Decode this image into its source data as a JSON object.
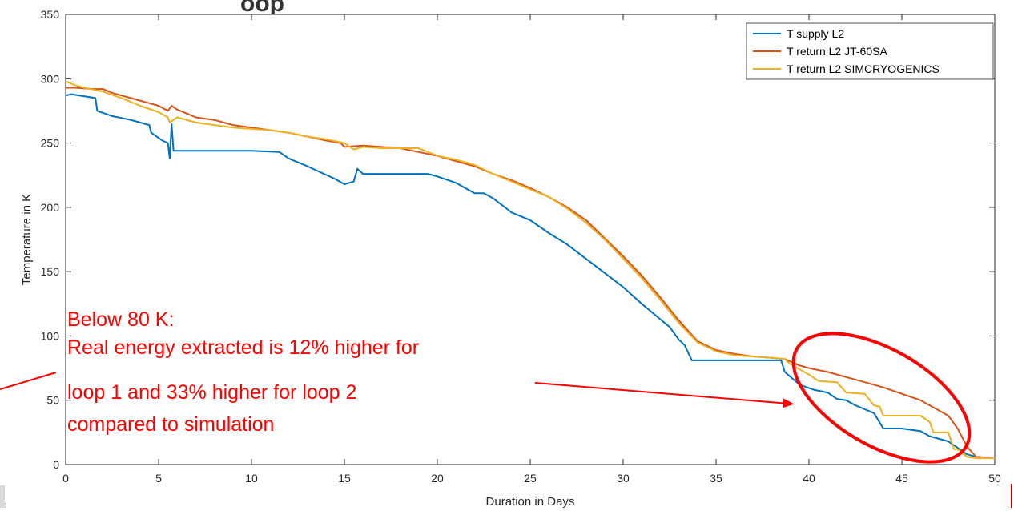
{
  "page": {
    "title_fragment": "oop",
    "corner_fragment": "fc"
  },
  "chart_data": {
    "type": "line",
    "xlabel": "Duration in Days",
    "ylabel": "Temperature in K",
    "xlim": [
      0,
      50
    ],
    "ylim": [
      0,
      350
    ],
    "xticks": [
      0,
      5,
      10,
      15,
      20,
      25,
      30,
      35,
      40,
      45,
      50
    ],
    "yticks": [
      0,
      50,
      100,
      150,
      200,
      250,
      300,
      350
    ],
    "grid": false,
    "legend_position": "top-right",
    "series": [
      {
        "name": "T supply L2",
        "color": "#0072BD",
        "x": [
          0,
          0.3,
          1.6,
          1.7,
          2.5,
          3.5,
          4.0,
          4.5,
          4.6,
          5.2,
          5.5,
          5.6,
          5.7,
          5.8,
          6.5,
          10.0,
          11.5,
          12.0,
          13.0,
          14.5,
          15.0,
          15.5,
          15.7,
          16.0,
          19.5,
          20.0,
          21.0,
          22.0,
          22.5,
          23.0,
          24.0,
          25.0,
          26.0,
          27.0,
          28.0,
          29.0,
          30.0,
          31.0,
          32.0,
          32.5,
          33.0,
          33.3,
          33.7,
          38.5,
          38.7,
          39.5,
          40.3,
          41.0,
          41.5,
          42.0,
          42.5,
          43.0,
          43.5,
          44.0,
          45.0,
          46.0,
          46.5,
          47.0,
          47.5,
          48.0,
          48.5,
          49.0,
          50.0
        ],
        "values": [
          287,
          288,
          285,
          275,
          271,
          268,
          266,
          264,
          258,
          252,
          250,
          238,
          265,
          244,
          244,
          244,
          243,
          238,
          232,
          222,
          218,
          220,
          230,
          226,
          226,
          224,
          219,
          211,
          211,
          207,
          196,
          190,
          180,
          171,
          160,
          149,
          138,
          125,
          113,
          107,
          97,
          93,
          81,
          81,
          72,
          62,
          58,
          56,
          51,
          50,
          46,
          43,
          40,
          28,
          28,
          26,
          22,
          20,
          18,
          13,
          8,
          6,
          5
        ]
      },
      {
        "name": "T return L2 JT-60SA",
        "color": "#D95319",
        "x": [
          0,
          0.5,
          1.5,
          2.0,
          2.5,
          3.0,
          3.5,
          4.0,
          4.5,
          5.0,
          5.5,
          5.7,
          6.0,
          6.5,
          7.0,
          8.0,
          9.0,
          10.0,
          11.0,
          12.0,
          13.0,
          14.0,
          14.8,
          15.0,
          16.0,
          17.0,
          18.0,
          19.0,
          20.0,
          21.0,
          22.0,
          23.0,
          24.0,
          25.0,
          26.0,
          27.0,
          28.0,
          29.0,
          30.0,
          31.0,
          32.0,
          33.0,
          34.0,
          35.0,
          36.0,
          37.0,
          38.0,
          38.7,
          39.5,
          40.0,
          41.0,
          42.0,
          43.0,
          44.0,
          45.0,
          46.0,
          46.5,
          47.0,
          47.5,
          48.0,
          48.5,
          49.0,
          50.0
        ],
        "values": [
          293,
          293,
          292,
          292,
          289,
          287,
          285,
          283,
          281,
          279,
          275,
          279,
          276,
          273,
          270,
          268,
          264,
          262,
          260,
          258,
          255,
          252,
          250,
          247,
          248,
          247,
          246,
          243,
          240,
          236,
          232,
          226,
          221,
          215,
          208,
          200,
          190,
          176,
          162,
          147,
          130,
          112,
          96,
          89,
          86,
          84,
          83,
          82,
          77,
          75,
          72,
          68,
          64,
          60,
          55,
          50,
          46,
          42,
          38,
          28,
          14,
          6,
          5
        ]
      },
      {
        "name": "T return L2 SIMCRYOGENICS",
        "color": "#EDB120",
        "x": [
          0,
          0.5,
          1.0,
          2.0,
          3.0,
          4.0,
          5.0,
          5.5,
          5.6,
          6.0,
          7.0,
          8.0,
          9.0,
          10.0,
          11.0,
          12.0,
          13.0,
          14.0,
          15.0,
          15.5,
          16.0,
          17.0,
          18.0,
          19.0,
          20.0,
          21.0,
          22.0,
          23.0,
          24.0,
          25.0,
          26.0,
          27.0,
          28.0,
          29.0,
          30.0,
          31.0,
          32.0,
          33.0,
          34.0,
          35.0,
          36.0,
          37.0,
          38.0,
          38.7,
          39.0,
          40.0,
          40.5,
          41.5,
          42.0,
          43.0,
          43.5,
          43.8,
          44.0,
          45.0,
          46.0,
          46.5,
          46.7,
          47.0,
          47.5,
          47.8,
          48.0,
          48.5,
          49.0,
          50.0
        ],
        "values": [
          298,
          295,
          293,
          290,
          285,
          279,
          274,
          270,
          266,
          270,
          266,
          264,
          262,
          261,
          260,
          258,
          255,
          253,
          250,
          245,
          247,
          246,
          246,
          246,
          240,
          237,
          233,
          226,
          220,
          214,
          208,
          199,
          188,
          175,
          160,
          145,
          128,
          110,
          95,
          88,
          85,
          84,
          83,
          82,
          78,
          70,
          65,
          64,
          56,
          55,
          46,
          45,
          38,
          38,
          38,
          33,
          25,
          25,
          25,
          12,
          12,
          6,
          5,
          5
        ]
      }
    ],
    "annotation": {
      "lines": [
        "Below 80 K:",
        "Real energy extracted is 12% higher for",
        "loop 1 and 33% higher for loop 2",
        "compared to simulation"
      ],
      "color": "#ff0000",
      "ellipse_center_days": 43.9,
      "ellipse_center_k": 52,
      "arrow_target_days": 39.2,
      "arrow_target_k": 47
    }
  }
}
